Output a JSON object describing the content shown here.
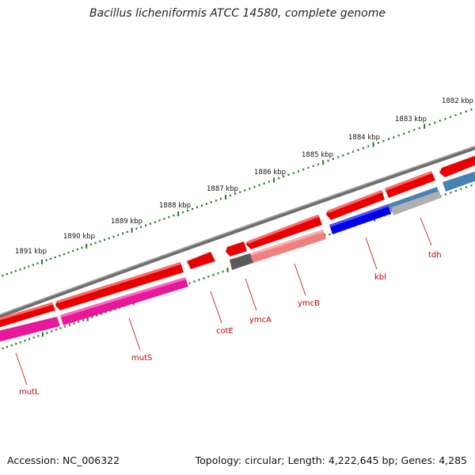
{
  "title": "Bacillus licheniformis ATCC 14580, complete genome",
  "footer": {
    "accession": "Accession: NC_006322",
    "summary": "Topology: circular; Length: 4,222,645 bp; Genes: 4,285"
  },
  "scale": {
    "unit": "kbp",
    "ticks": [
      "1891 kbp",
      "1890 kbp",
      "1889 kbp",
      "1888 kbp",
      "1887 kbp",
      "1886 kbp",
      "1885 kbp",
      "1884 kbp",
      "1883 kbp",
      "1882 kbp"
    ]
  },
  "gene_labels": [
    "mutL",
    "mutS",
    "cotE",
    "ymcA",
    "ymcB",
    "kbl",
    "tdh"
  ],
  "colors": {
    "cds_forward": "#e80000",
    "cds_light": "#f08080",
    "category_pink": "#e8189a",
    "category_blue": "#0000e6",
    "category_steel": "#4682b4",
    "category_gray": "#555555",
    "backbone": "#7a7a7a",
    "tick_dots": "#1e7a1e",
    "label_red": "#cc0000"
  }
}
